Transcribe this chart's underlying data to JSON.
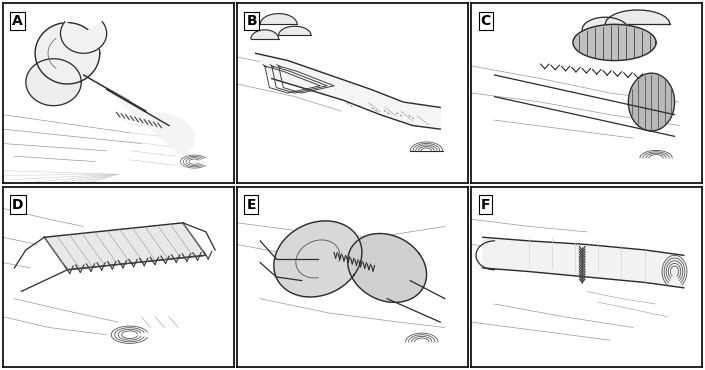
{
  "figure_width": 7.05,
  "figure_height": 3.7,
  "dpi": 100,
  "panels": [
    "A",
    "B",
    "C",
    "D",
    "E",
    "F"
  ],
  "grid_rows": 2,
  "grid_cols": 3,
  "bg_color": "#ffffff",
  "border_color": "#000000",
  "label_color": "#000000",
  "label_fontsize": 10,
  "label_fontweight": "bold",
  "sketch_color": "#2a2a2a",
  "mid_color": "#555555",
  "light_color": "#999999",
  "very_light": "#cccccc",
  "fill_gray": "#e8e8e8",
  "dark_gray": "#404040"
}
